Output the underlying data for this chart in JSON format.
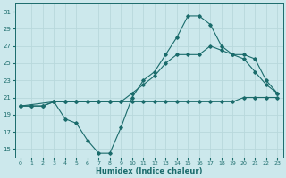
{
  "xlabel": "Humidex (Indice chaleur)",
  "bg_color": "#cce8ec",
  "grid_color": "#b8d8dc",
  "line_color": "#1a6b6b",
  "xlim": [
    -0.5,
    23.5
  ],
  "ylim": [
    14,
    32
  ],
  "yticks": [
    15,
    17,
    19,
    21,
    23,
    25,
    27,
    29,
    31
  ],
  "xticks": [
    0,
    1,
    2,
    3,
    4,
    5,
    6,
    7,
    8,
    9,
    10,
    11,
    12,
    13,
    14,
    15,
    16,
    17,
    18,
    19,
    20,
    21,
    22,
    23
  ],
  "line1_x": [
    0,
    1,
    2,
    3,
    4,
    5,
    6,
    7,
    8,
    9,
    10,
    11,
    12,
    13,
    14,
    15,
    16,
    17,
    18,
    19,
    20,
    21,
    22,
    23
  ],
  "line1_y": [
    20.0,
    20.0,
    20.0,
    20.5,
    20.5,
    20.5,
    20.5,
    20.5,
    20.5,
    20.5,
    20.5,
    20.5,
    20.5,
    20.5,
    20.5,
    20.5,
    20.5,
    20.5,
    20.5,
    20.5,
    21.0,
    21.0,
    21.0,
    21.0
  ],
  "line2_x": [
    0,
    3,
    4,
    5,
    6,
    7,
    8,
    9,
    10,
    11,
    12,
    13,
    14,
    15,
    16,
    17,
    18,
    19,
    20,
    21,
    22,
    23
  ],
  "line2_y": [
    20.0,
    20.5,
    18.5,
    18.0,
    16.0,
    14.5,
    14.5,
    17.5,
    21.0,
    23.0,
    24.0,
    26.0,
    28.0,
    30.5,
    30.5,
    29.5,
    27.0,
    26.0,
    25.5,
    24.0,
    22.5,
    21.5
  ],
  "line3_x": [
    0,
    1,
    2,
    3,
    4,
    5,
    6,
    7,
    8,
    9,
    10,
    11,
    12,
    13,
    14,
    15,
    16,
    17,
    18,
    19,
    20,
    21,
    22,
    23
  ],
  "line3_y": [
    20.0,
    20.0,
    20.0,
    20.5,
    20.5,
    20.5,
    20.5,
    20.5,
    20.5,
    20.5,
    21.5,
    22.5,
    23.5,
    25.0,
    26.0,
    26.0,
    26.0,
    27.0,
    26.5,
    26.0,
    26.0,
    25.5,
    23.0,
    21.5
  ]
}
